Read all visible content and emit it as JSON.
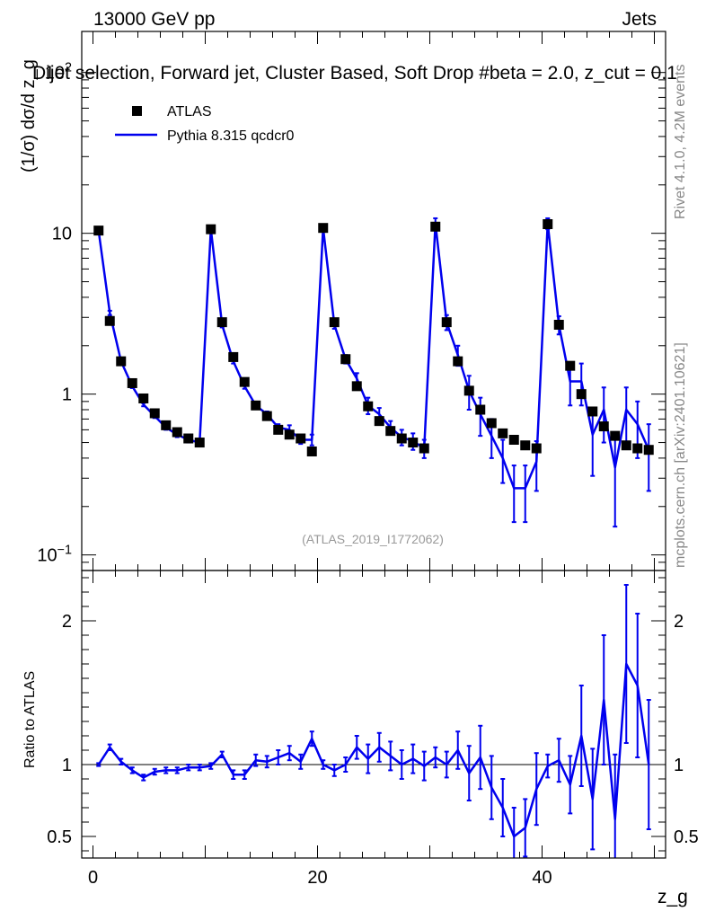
{
  "header": {
    "left": "13000 GeV pp",
    "right": "Jets",
    "title": "Dijet selection, Forward jet, Cluster Based, Soft Drop #beta = 2.0, z_cut = 0.1"
  },
  "side_labels": {
    "rivet": "Rivet 4.1.0,  4.2M events",
    "mcplots": "mcplots.cern.ch [arXiv:2401.10621]"
  },
  "analysis_ref": "(ATLAS_2019_I1772062)",
  "chart_data": [
    {
      "type": "scatter",
      "name": "main",
      "ylabel": "(1/σ) dσ/d z_g",
      "yscale": "log",
      "ylim": [
        0.08,
        180
      ],
      "xlim": [
        -1,
        51
      ],
      "ytick_labels": [
        "10^-1",
        "1",
        "10",
        "10^2"
      ],
      "legend": [
        {
          "label": "ATLAS",
          "marker": "square",
          "color": "#000000"
        },
        {
          "label": "Pythia 8.315 qcdcr0",
          "marker": "line",
          "color": "#0000ee"
        }
      ],
      "x": [
        0.5,
        1.5,
        2.5,
        3.5,
        4.5,
        5.5,
        6.5,
        7.5,
        8.5,
        9.5,
        10.5,
        11.5,
        12.5,
        13.5,
        14.5,
        15.5,
        16.5,
        17.5,
        18.5,
        19.5,
        20.5,
        21.5,
        22.5,
        23.5,
        24.5,
        25.5,
        26.5,
        27.5,
        28.5,
        29.5,
        30.5,
        31.5,
        32.5,
        33.5,
        34.5,
        35.5,
        36.5,
        37.5,
        38.5,
        39.5,
        40.5,
        41.5,
        42.5,
        43.5,
        44.5,
        45.5,
        46.5,
        47.5,
        48.5,
        49.5
      ],
      "series": [
        {
          "name": "ATLAS",
          "values": [
            10.4,
            2.85,
            1.6,
            1.17,
            0.94,
            0.76,
            0.64,
            0.58,
            0.53,
            0.5,
            10.6,
            2.8,
            1.7,
            1.19,
            0.85,
            0.73,
            0.6,
            0.56,
            0.53,
            0.44,
            10.8,
            2.8,
            1.65,
            1.12,
            0.84,
            0.68,
            0.59,
            0.53,
            0.5,
            0.46,
            11.0,
            2.8,
            1.6,
            1.05,
            0.8,
            0.66,
            0.57,
            0.52,
            0.48,
            0.46,
            11.4,
            2.7,
            1.5,
            1.0,
            0.78,
            0.63,
            0.55,
            0.48,
            0.46,
            0.45
          ]
        },
        {
          "name": "Pythia 8.315 qcdcr0",
          "values": [
            10.4,
            3.2,
            1.6,
            1.12,
            0.86,
            0.73,
            0.62,
            0.56,
            0.52,
            0.5,
            10.6,
            2.7,
            1.6,
            1.12,
            0.85,
            0.75,
            0.62,
            0.6,
            0.52,
            0.52,
            10.8,
            2.7,
            1.65,
            1.25,
            0.85,
            0.75,
            0.62,
            0.54,
            0.51,
            0.46,
            11.5,
            2.8,
            1.75,
            1.05,
            0.75,
            0.55,
            0.4,
            0.26,
            0.26,
            0.38,
            11.5,
            2.7,
            1.2,
            1.2,
            0.56,
            0.8,
            0.35,
            0.8,
            0.65,
            0.45
          ],
          "err": [
            0.25,
            0.1,
            0.05,
            0.03,
            0.02,
            0.02,
            0.02,
            0.02,
            0.02,
            0.02,
            0.3,
            0.1,
            0.05,
            0.04,
            0.03,
            0.03,
            0.03,
            0.04,
            0.03,
            0.04,
            0.4,
            0.15,
            0.1,
            0.1,
            0.1,
            0.07,
            0.06,
            0.06,
            0.06,
            0.06,
            0.9,
            0.3,
            0.25,
            0.25,
            0.2,
            0.15,
            0.12,
            0.1,
            0.1,
            0.13,
            0.9,
            0.35,
            0.35,
            0.35,
            0.25,
            0.3,
            0.2,
            0.3,
            0.25,
            0.2
          ]
        }
      ]
    },
    {
      "type": "line",
      "name": "ratio",
      "ylabel": "Ratio to ATLAS",
      "xlabel": "z_g",
      "ylim": [
        0.35,
        2.35
      ],
      "xlim": [
        -1,
        51
      ],
      "xtick_labels": [
        "0",
        "20",
        "40"
      ],
      "ytick_labels": [
        "0.5",
        "1",
        "2"
      ],
      "reference": 1,
      "x": [
        0.5,
        1.5,
        2.5,
        3.5,
        4.5,
        5.5,
        6.5,
        7.5,
        8.5,
        9.5,
        10.5,
        11.5,
        12.5,
        13.5,
        14.5,
        15.5,
        16.5,
        17.5,
        18.5,
        19.5,
        20.5,
        21.5,
        22.5,
        23.5,
        24.5,
        25.5,
        26.5,
        27.5,
        28.5,
        29.5,
        30.5,
        31.5,
        32.5,
        33.5,
        34.5,
        35.5,
        36.5,
        37.5,
        38.5,
        39.5,
        40.5,
        41.5,
        42.5,
        43.5,
        44.5,
        45.5,
        46.5,
        47.5,
        48.5,
        49.5
      ],
      "series": [
        {
          "name": "Pythia 8.315 qcdcr0 / ATLAS",
          "values": [
            1.0,
            1.12,
            1.02,
            0.96,
            0.91,
            0.95,
            0.96,
            0.96,
            0.98,
            0.98,
            0.99,
            1.07,
            0.93,
            0.93,
            1.03,
            1.02,
            1.05,
            1.08,
            1.02,
            1.18,
            1.0,
            0.96,
            1.0,
            1.12,
            1.04,
            1.12,
            1.06,
            1.0,
            1.04,
            0.99,
            1.05,
            1.0,
            1.1,
            0.94,
            1.05,
            0.84,
            0.7,
            0.5,
            0.56,
            0.83,
            0.99,
            1.03,
            0.86,
            1.2,
            0.76,
            1.45,
            0.62,
            1.7,
            1.55,
            1.0
          ],
          "err": [
            0.01,
            0.02,
            0.02,
            0.02,
            0.02,
            0.02,
            0.02,
            0.02,
            0.02,
            0.02,
            0.02,
            0.02,
            0.03,
            0.03,
            0.04,
            0.04,
            0.05,
            0.05,
            0.05,
            0.05,
            0.03,
            0.04,
            0.05,
            0.08,
            0.1,
            0.1,
            0.1,
            0.1,
            0.1,
            0.1,
            0.07,
            0.09,
            0.13,
            0.19,
            0.22,
            0.22,
            0.2,
            0.2,
            0.2,
            0.25,
            0.08,
            0.15,
            0.2,
            0.35,
            0.35,
            0.45,
            0.45,
            0.55,
            0.5,
            0.45
          ]
        }
      ]
    }
  ]
}
